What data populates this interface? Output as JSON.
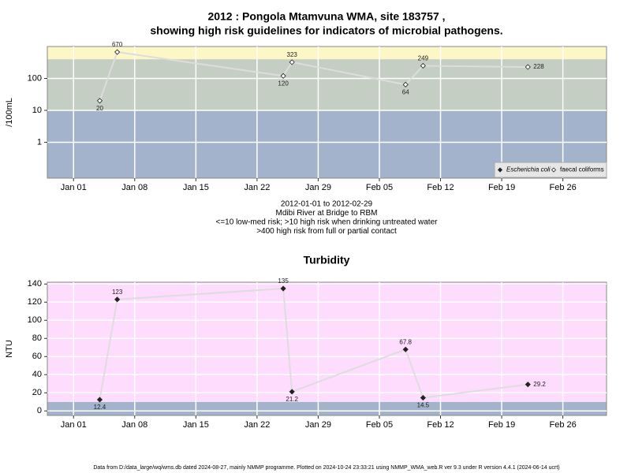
{
  "chart_data": [
    {
      "type": "line",
      "title": [
        "2012 : Pongola Mtamvuna WMA, site 183757 ,",
        "showing high risk guidelines for indicators of microbial pathogens."
      ],
      "ylabel": "/100mL",
      "log_y": true,
      "x": [
        "2012-01-04",
        "2012-01-06",
        "2012-01-25",
        "2012-01-26",
        "2012-02-08",
        "2012-02-10",
        "2012-02-22"
      ],
      "series": [
        {
          "name": "Escherichia coli",
          "color": "#222222",
          "marker": "filled",
          "values": [
            null,
            null,
            null,
            null,
            null,
            null,
            null
          ]
        },
        {
          "name": "faecal coliforms",
          "color": "#222222",
          "marker": "open",
          "values": [
            20,
            670,
            120,
            323,
            64,
            249,
            228
          ]
        }
      ],
      "line_color": "#dddddd",
      "bands": [
        {
          "from": 0.075,
          "to": 10,
          "color": "#a3b3cb"
        },
        {
          "from": 10,
          "to": 400,
          "color": "#c4cec2"
        },
        {
          "from": 400,
          "to": 1000,
          "color": "#fdf6c6"
        }
      ],
      "xlim": [
        "2011-12-29",
        "2012-03-02"
      ],
      "xticks": [
        {
          "value": "2012-01-01",
          "label": "Jan 01"
        },
        {
          "value": "2012-01-08",
          "label": "Jan 08"
        },
        {
          "value": "2012-01-15",
          "label": "Jan 15"
        },
        {
          "value": "2012-01-22",
          "label": "Jan 22"
        },
        {
          "value": "2012-01-29",
          "label": "Jan 29"
        },
        {
          "value": "2012-02-05",
          "label": "Feb 05"
        },
        {
          "value": "2012-02-12",
          "label": "Feb 12"
        },
        {
          "value": "2012-02-19",
          "label": "Feb 19"
        },
        {
          "value": "2012-02-26",
          "label": "Feb 26"
        }
      ],
      "ylim": [
        0.075,
        1000
      ],
      "yticks": [
        1,
        10,
        100
      ],
      "grid": true,
      "legend": "bottom right",
      "annotations": [
        "2012-01-01 to 2012-02-29",
        "Mdibi River at Bridge to RBM",
        "<=10 low-med risk; >10 high risk when drinking untreated water",
        ">400 high risk from full or partial contact"
      ]
    },
    {
      "type": "line",
      "title": [
        "Turbidity"
      ],
      "ylabel": "NTU",
      "log_y": false,
      "x": [
        "2012-01-04",
        "2012-01-06",
        "2012-01-25",
        "2012-01-26",
        "2012-02-08",
        "2012-02-10",
        "2012-02-22"
      ],
      "series": [
        {
          "color": "#222222",
          "marker": "filled",
          "values": [
            12.4,
            123,
            135,
            21.2,
            67.8,
            14.5,
            29.2
          ]
        }
      ],
      "line_color": "#dddddd",
      "bands": [
        {
          "from": -5,
          "to": 10,
          "color": "#a3b3cb"
        },
        {
          "from": 10,
          "to": 142,
          "color": "#fddcfd"
        }
      ],
      "xlim": [
        "2011-12-29",
        "2012-03-02"
      ],
      "xticks": [
        {
          "value": "2012-01-01",
          "label": "Jan 01"
        },
        {
          "value": "2012-01-08",
          "label": "Jan 08"
        },
        {
          "value": "2012-01-15",
          "label": "Jan 15"
        },
        {
          "value": "2012-01-22",
          "label": "Jan 22"
        },
        {
          "value": "2012-01-29",
          "label": "Jan 29"
        },
        {
          "value": "2012-02-05",
          "label": "Feb 05"
        },
        {
          "value": "2012-02-12",
          "label": "Feb 12"
        },
        {
          "value": "2012-02-19",
          "label": "Feb 19"
        },
        {
          "value": "2012-02-26",
          "label": "Feb 26"
        }
      ],
      "ylim": [
        -5,
        142
      ],
      "yticks": [
        0,
        20,
        40,
        60,
        80,
        100,
        120,
        140
      ],
      "grid": true
    }
  ],
  "footer": "Data from D:/data_large/wq/wms.db dated 2024-08-27, mainly NMMP programme. Plotted on 2024-10-24 23:33:21 using NMMP_WMA_web.R ver 9.3 under R version 4.4.1 (2024-06-14 ucrt)"
}
